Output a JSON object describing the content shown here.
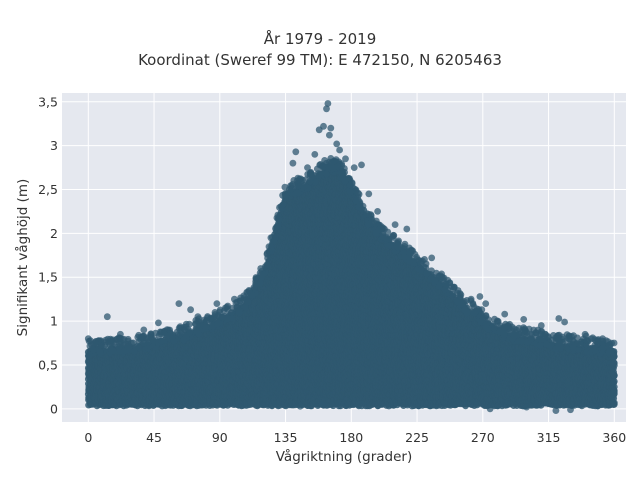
{
  "title_line1": "År 1979 - 2019",
  "title_line2": "Koordinat (Sweref 99 TM): E 472150, N 6205463",
  "chart_data": {
    "type": "scatter",
    "title": "År 1979 - 2019",
    "subtitle": "Koordinat (Sweref 99 TM): E 472150, N 6205463",
    "xlabel": "Vågriktning (grader)",
    "ylabel": "Signifikant våghöjd (m)",
    "xlim": [
      -18,
      368
    ],
    "ylim": [
      -0.15,
      3.6
    ],
    "x_ticks": [
      0,
      45,
      90,
      135,
      180,
      225,
      270,
      315,
      360
    ],
    "x_tick_labels": [
      "0",
      "45",
      "90",
      "135",
      "180",
      "225",
      "270",
      "315",
      "360"
    ],
    "y_ticks": [
      0,
      0.5,
      1,
      1.5,
      2,
      2.5,
      3,
      3.5
    ],
    "y_tick_labels": [
      "0",
      "0,5",
      "1",
      "1,5",
      "2",
      "2,5",
      "3",
      "3,5"
    ],
    "grid": true,
    "marker_color": "#2f5870",
    "background_color": "#e5e8ef",
    "envelope": {
      "direction": [
        0,
        15,
        30,
        45,
        60,
        75,
        90,
        105,
        120,
        135,
        150,
        160,
        170,
        180,
        195,
        210,
        225,
        240,
        255,
        270,
        285,
        300,
        315,
        330,
        345,
        360
      ],
      "max_height": [
        0.65,
        0.68,
        0.7,
        0.75,
        0.8,
        0.9,
        1.0,
        1.15,
        1.5,
        2.45,
        2.55,
        2.7,
        2.75,
        2.5,
        2.05,
        1.85,
        1.65,
        1.45,
        1.2,
        1.0,
        0.85,
        0.8,
        0.75,
        0.72,
        0.7,
        0.65
      ]
    },
    "outliers": [
      {
        "x": 13,
        "y": 1.05
      },
      {
        "x": 22,
        "y": 0.85
      },
      {
        "x": 38,
        "y": 0.9
      },
      {
        "x": 48,
        "y": 0.98
      },
      {
        "x": 62,
        "y": 1.2
      },
      {
        "x": 70,
        "y": 1.13
      },
      {
        "x": 75,
        "y": 1.05
      },
      {
        "x": 88,
        "y": 1.2
      },
      {
        "x": 100,
        "y": 1.25
      },
      {
        "x": 110,
        "y": 1.35
      },
      {
        "x": 118,
        "y": 1.6
      },
      {
        "x": 125,
        "y": 1.95
      },
      {
        "x": 140,
        "y": 2.8
      },
      {
        "x": 142,
        "y": 2.93
      },
      {
        "x": 150,
        "y": 2.75
      },
      {
        "x": 155,
        "y": 2.9
      },
      {
        "x": 158,
        "y": 3.18
      },
      {
        "x": 161,
        "y": 3.22
      },
      {
        "x": 163,
        "y": 3.42
      },
      {
        "x": 164,
        "y": 3.48
      },
      {
        "x": 165,
        "y": 3.12
      },
      {
        "x": 166,
        "y": 3.2
      },
      {
        "x": 170,
        "y": 3.02
      },
      {
        "x": 172,
        "y": 2.95
      },
      {
        "x": 176,
        "y": 2.85
      },
      {
        "x": 182,
        "y": 2.75
      },
      {
        "x": 187,
        "y": 2.78
      },
      {
        "x": 192,
        "y": 2.45
      },
      {
        "x": 198,
        "y": 2.25
      },
      {
        "x": 210,
        "y": 2.1
      },
      {
        "x": 218,
        "y": 2.05
      },
      {
        "x": 222,
        "y": 1.8
      },
      {
        "x": 235,
        "y": 1.72
      },
      {
        "x": 240,
        "y": 1.5
      },
      {
        "x": 245,
        "y": 1.42
      },
      {
        "x": 255,
        "y": 1.3
      },
      {
        "x": 262,
        "y": 1.25
      },
      {
        "x": 268,
        "y": 1.28
      },
      {
        "x": 272,
        "y": 1.2
      },
      {
        "x": 285,
        "y": 1.08
      },
      {
        "x": 298,
        "y": 1.02
      },
      {
        "x": 310,
        "y": 0.95
      },
      {
        "x": 322,
        "y": 1.03
      },
      {
        "x": 326,
        "y": 0.99
      },
      {
        "x": 340,
        "y": 0.85
      },
      {
        "x": 352,
        "y": 0.8
      },
      {
        "x": 0,
        "y": 0.8
      },
      {
        "x": 5,
        "y": 0.75
      },
      {
        "x": 275,
        "y": 0.0
      },
      {
        "x": 300,
        "y": 0.02
      },
      {
        "x": 320,
        "y": -0.02
      },
      {
        "x": 330,
        "y": -0.01
      },
      {
        "x": 145,
        "y": 0.03
      },
      {
        "x": 160,
        "y": 0.05
      }
    ]
  }
}
